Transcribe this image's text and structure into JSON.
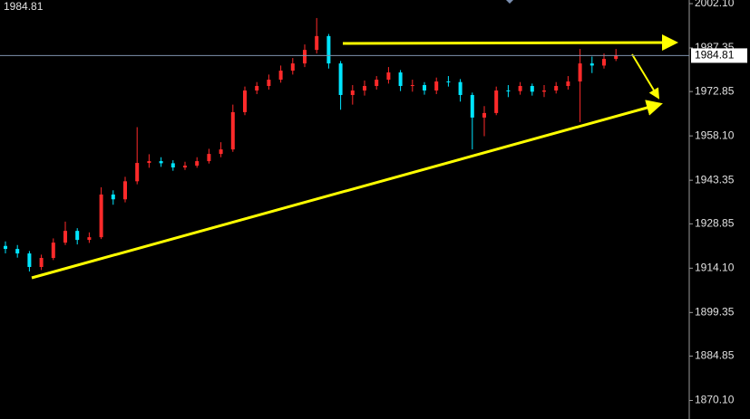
{
  "chart_data": {
    "type": "candlestick",
    "current_price": 1984.81,
    "up_color": "#ff2a2a",
    "down_color": "#00e5ff",
    "ylim": [
      1863.93,
      2003.3
    ],
    "yticks": [
      {
        "value": 2002.1,
        "label": "2002.10"
      },
      1987.35,
      1972.85,
      {
        "value": 1958.1,
        "label": "1958.10"
      },
      1943.35,
      1928.85,
      {
        "value": 1914.1,
        "label": "1914.10"
      },
      1899.35,
      1884.85,
      {
        "value": 1870.1,
        "label": "1870.10"
      }
    ],
    "open": [
      1921.5,
      1920.5,
      1919.0,
      1914.5,
      1917.5,
      1922.6,
      1926.5,
      1923.5,
      1924.4,
      1938.6,
      1937.0,
      1943.0,
      1949.1,
      1949.7,
      1949.0,
      1947.6,
      1948.2,
      1949.7,
      1952.1,
      1953.6,
      1966.0,
      1973.2,
      1974.7,
      1976.8,
      1979.8,
      1982.2,
      1986.7,
      1991.3,
      1982.2,
      1971.7,
      1973.2,
      1974.7,
      1976.8,
      1979.2,
      1974.7,
      1975.0,
      1973.2,
      1976.2,
      1976.0,
      1971.7,
      1964.2,
      1965.7,
      1973.2,
      1973.0,
      1974.7,
      1972.8,
      1973.2,
      1974.7,
      1976.2,
      1982.2,
      1981.5,
      1983.7
    ],
    "high": [
      1923.0,
      1921.8,
      1919.8,
      1918.6,
      1924.0,
      1929.6,
      1927.4,
      1926.0,
      1941.0,
      1940.0,
      1944.5,
      1961.0,
      1952.0,
      1951.0,
      1950.0,
      1949.5,
      1951.0,
      1953.8,
      1956.0,
      1968.5,
      1974.5,
      1976.0,
      1978.5,
      1981.5,
      1984.0,
      1988.5,
      1997.3,
      1992.0,
      1983.0,
      1975.0,
      1976.5,
      1978.0,
      1981.0,
      1980.0,
      1976.8,
      1976.0,
      1977.5,
      1978.0,
      1977.0,
      1972.5,
      1968.0,
      1974.5,
      1975.0,
      1976.0,
      1975.5,
      1975.0,
      1976.0,
      1978.0,
      1987.0,
      1984.5,
      1985.5,
      1987.0
    ],
    "low": [
      1919.0,
      1917.6,
      1913.0,
      1913.5,
      1916.8,
      1921.8,
      1922.0,
      1922.5,
      1923.8,
      1935.2,
      1936.0,
      1942.0,
      1947.5,
      1947.8,
      1946.5,
      1946.8,
      1947.5,
      1948.9,
      1951.0,
      1952.8,
      1965.0,
      1972.0,
      1973.5,
      1975.8,
      1978.5,
      1981.0,
      1985.5,
      1980.5,
      1966.8,
      1968.5,
      1971.5,
      1973.5,
      1975.5,
      1973.0,
      1972.8,
      1971.8,
      1972.0,
      1974.5,
      1969.5,
      1953.6,
      1958.0,
      1965.0,
      1971.0,
      1971.8,
      1971.5,
      1971.0,
      1972.2,
      1973.5,
      1962.7,
      1979.0,
      1980.5,
      1983.0
    ],
    "close": [
      1920.5,
      1919.0,
      1914.5,
      1917.5,
      1922.6,
      1926.5,
      1923.5,
      1924.4,
      1938.6,
      1937.0,
      1943.0,
      1949.1,
      1949.7,
      1949.0,
      1947.6,
      1948.2,
      1949.7,
      1952.1,
      1953.6,
      1966.0,
      1973.2,
      1974.7,
      1976.8,
      1979.8,
      1982.2,
      1986.7,
      1991.3,
      1982.2,
      1971.7,
      1973.2,
      1974.7,
      1976.8,
      1979.2,
      1974.7,
      1975.0,
      1973.2,
      1976.2,
      1976.0,
      1971.7,
      1964.2,
      1965.7,
      1973.2,
      1973.0,
      1974.7,
      1972.8,
      1973.2,
      1974.7,
      1976.2,
      1982.2,
      1981.5,
      1983.7,
      1984.8
    ]
  }
}
